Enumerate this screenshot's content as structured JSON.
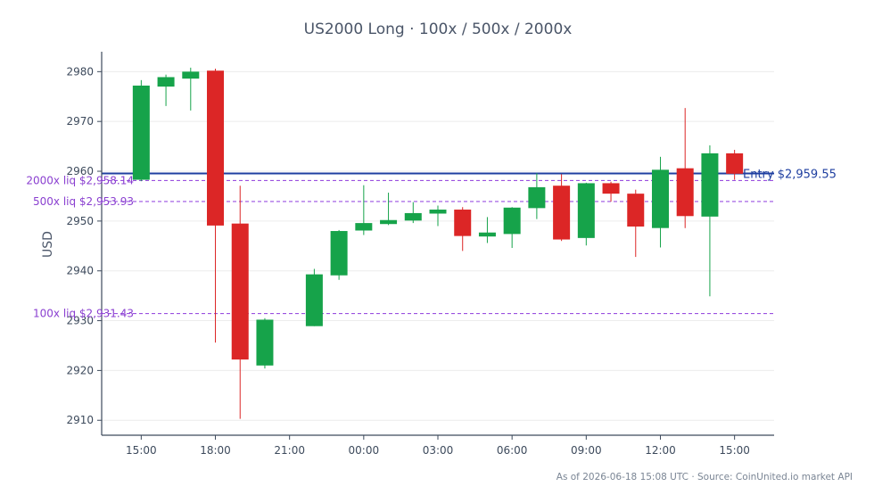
{
  "chart_data": {
    "type": "candlestick",
    "title": "US2000 Long · 100x / 500x / 2000x",
    "ylabel": "USD",
    "ylim": [
      2907,
      2984
    ],
    "yticks": [
      2910,
      2920,
      2930,
      2940,
      2950,
      2960,
      2970,
      2980
    ],
    "xticks": [
      {
        "label": "15:00",
        "index": 0
      },
      {
        "label": "18:00",
        "index": 3
      },
      {
        "label": "21:00",
        "index": 6
      },
      {
        "label": "00:00",
        "index": 9
      },
      {
        "label": "03:00",
        "index": 12
      },
      {
        "label": "06:00",
        "index": 15
      },
      {
        "label": "09:00",
        "index": 18
      },
      {
        "label": "12:00",
        "index": 21
      },
      {
        "label": "15:00",
        "index": 24
      }
    ],
    "x_range": [
      -1.6,
      25.6
    ],
    "grid": true,
    "candles": [
      {
        "o": 2958.3,
        "h": 2978.3,
        "l": 2958.0,
        "c": 2977.2
      },
      {
        "o": 2977.0,
        "h": 2979.4,
        "l": 2973.1,
        "c": 2978.9
      },
      {
        "o": 2978.6,
        "h": 2980.8,
        "l": 2972.2,
        "c": 2980.0
      },
      {
        "o": 2980.2,
        "h": 2980.6,
        "l": 2925.6,
        "c": 2949.1
      },
      {
        "o": 2949.5,
        "h": 2957.1,
        "l": 2910.3,
        "c": 2922.2
      },
      {
        "o": 2921.0,
        "h": 2930.5,
        "l": 2920.4,
        "c": 2930.2
      },
      null,
      {
        "o": 2928.9,
        "h": 2940.4,
        "l": 2928.9,
        "c": 2939.3
      },
      {
        "o": 2939.1,
        "h": 2948.2,
        "l": 2938.2,
        "c": 2948.0
      },
      {
        "o": 2948.1,
        "h": 2957.2,
        "l": 2947.2,
        "c": 2949.6
      },
      {
        "o": 2949.4,
        "h": 2955.7,
        "l": 2949.2,
        "c": 2950.2
      },
      {
        "o": 2950.1,
        "h": 2953.8,
        "l": 2949.6,
        "c": 2951.6
      },
      {
        "o": 2951.5,
        "h": 2953.1,
        "l": 2949.0,
        "c": 2952.3
      },
      {
        "o": 2952.3,
        "h": 2952.8,
        "l": 2944.0,
        "c": 2947.0
      },
      {
        "o": 2946.9,
        "h": 2950.8,
        "l": 2945.6,
        "c": 2947.7
      },
      {
        "o": 2947.4,
        "h": 2952.8,
        "l": 2944.6,
        "c": 2952.7
      },
      {
        "o": 2952.6,
        "h": 2959.6,
        "l": 2950.4,
        "c": 2956.8
      },
      {
        "o": 2957.1,
        "h": 2959.4,
        "l": 2946.0,
        "c": 2946.3
      },
      {
        "o": 2946.6,
        "h": 2957.7,
        "l": 2945.1,
        "c": 2957.6
      },
      {
        "o": 2957.6,
        "h": 2957.9,
        "l": 2953.9,
        "c": 2955.5
      },
      {
        "o": 2955.5,
        "h": 2956.3,
        "l": 2942.8,
        "c": 2948.9
      },
      {
        "o": 2948.6,
        "h": 2962.9,
        "l": 2944.7,
        "c": 2960.3
      },
      {
        "o": 2960.6,
        "h": 2972.7,
        "l": 2948.6,
        "c": 2951.0
      },
      {
        "o": 2950.9,
        "h": 2965.2,
        "l": 2934.9,
        "c": 2963.6
      },
      {
        "o": 2963.6,
        "h": 2964.3,
        "l": 2958.3,
        "c": 2959.5
      }
    ],
    "up_color": "#16a34a",
    "down_color": "#dc2626",
    "reference_lines": [
      {
        "label": "Entry $2,959.55",
        "value": 2959.55,
        "style": "solid",
        "color": "#1f3fa0"
      },
      {
        "label": "2000x liq $2,958.14",
        "value": 2958.14,
        "style": "dashed",
        "color": "#9b51e0"
      },
      {
        "label": "500x liq $2,953.93",
        "value": 2953.93,
        "style": "dashed",
        "color": "#9b51e0"
      },
      {
        "label": "100x liq $2,931.43",
        "value": 2931.43,
        "style": "dashed",
        "color": "#9b51e0"
      }
    ]
  },
  "footer": "As of 2026-06-18 15:08 UTC · Source: CoinUnited.io market API"
}
